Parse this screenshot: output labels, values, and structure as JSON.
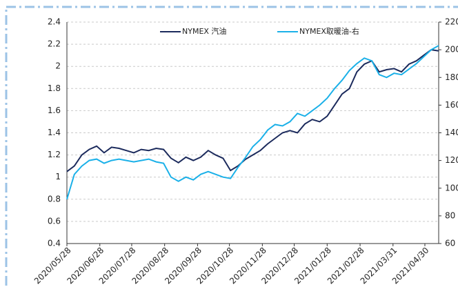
{
  "chart_data": {
    "type": "line",
    "x": [
      "2020/05/28",
      "2020/06/04",
      "2020/06/11",
      "2020/06/18",
      "2020/06/25",
      "2020/07/02",
      "2020/07/09",
      "2020/07/16",
      "2020/07/23",
      "2020/07/30",
      "2020/08/06",
      "2020/08/13",
      "2020/08/20",
      "2020/08/27",
      "2020/09/03",
      "2020/09/10",
      "2020/09/17",
      "2020/09/24",
      "2020/10/01",
      "2020/10/08",
      "2020/10/15",
      "2020/10/22",
      "2020/10/29",
      "2020/11/05",
      "2020/11/12",
      "2020/11/19",
      "2020/11/26",
      "2020/12/03",
      "2020/12/10",
      "2020/12/17",
      "2020/12/24",
      "2020/12/31",
      "2021/01/07",
      "2021/01/14",
      "2021/01/21",
      "2021/01/28",
      "2021/02/04",
      "2021/02/11",
      "2021/02/18",
      "2021/02/25",
      "2021/03/04",
      "2021/03/11",
      "2021/03/18",
      "2021/03/25",
      "2021/04/01",
      "2021/04/08",
      "2021/04/15",
      "2021/04/22",
      "2021/04/29",
      "2021/05/06",
      "2021/05/13"
    ],
    "series": [
      {
        "name": "NYMEX 汽油",
        "color": "#1b2a5c",
        "values": [
          1.05,
          1.1,
          1.2,
          1.25,
          1.28,
          1.22,
          1.27,
          1.26,
          1.24,
          1.22,
          1.25,
          1.24,
          1.26,
          1.25,
          1.17,
          1.13,
          1.18,
          1.15,
          1.18,
          1.24,
          1.2,
          1.17,
          1.06,
          1.1,
          1.16,
          1.2,
          1.24,
          1.3,
          1.35,
          1.4,
          1.42,
          1.4,
          1.48,
          1.52,
          1.5,
          1.55,
          1.65,
          1.75,
          1.8,
          1.95,
          2.02,
          2.05,
          1.95,
          1.97,
          1.98,
          1.95,
          2.02,
          2.05,
          2.1,
          2.15,
          2.14
        ]
      },
      {
        "name": "NYMEX取暖油-右",
        "color": "#1ab0e8",
        "axis": "y2",
        "values": [
          92,
          110,
          116,
          120,
          121,
          118,
          120,
          121,
          120,
          119,
          120,
          121,
          119,
          118,
          108,
          105,
          108,
          106,
          110,
          112,
          110,
          108,
          107,
          115,
          122,
          130,
          135,
          142,
          146,
          145,
          148,
          154,
          152,
          156,
          160,
          165,
          172,
          178,
          185,
          190,
          194,
          192,
          182,
          180,
          183,
          182,
          186,
          190,
          195,
          200,
          203
        ]
      }
    ],
    "xlim": [
      "2020/05/28",
      "2021/05/13"
    ],
    "xticks": [
      "2020/05/28",
      "2020/06/28",
      "2020/07/28",
      "2020/08/28",
      "2020/09/28",
      "2020/10/28",
      "2020/11/28",
      "2020/12/28",
      "2021/01/28",
      "2021/02/28",
      "2021/03/31",
      "2021/04/30"
    ],
    "ylim": [
      0.4,
      2.4
    ],
    "yticks": [
      0.4,
      0.6,
      0.8,
      1,
      1.2,
      1.4,
      1.6,
      1.8,
      2,
      2.2,
      2.4
    ],
    "y2lim": [
      60,
      220
    ],
    "y2ticks": [
      60,
      80,
      100,
      120,
      140,
      160,
      180,
      200,
      220
    ],
    "grid": true
  }
}
